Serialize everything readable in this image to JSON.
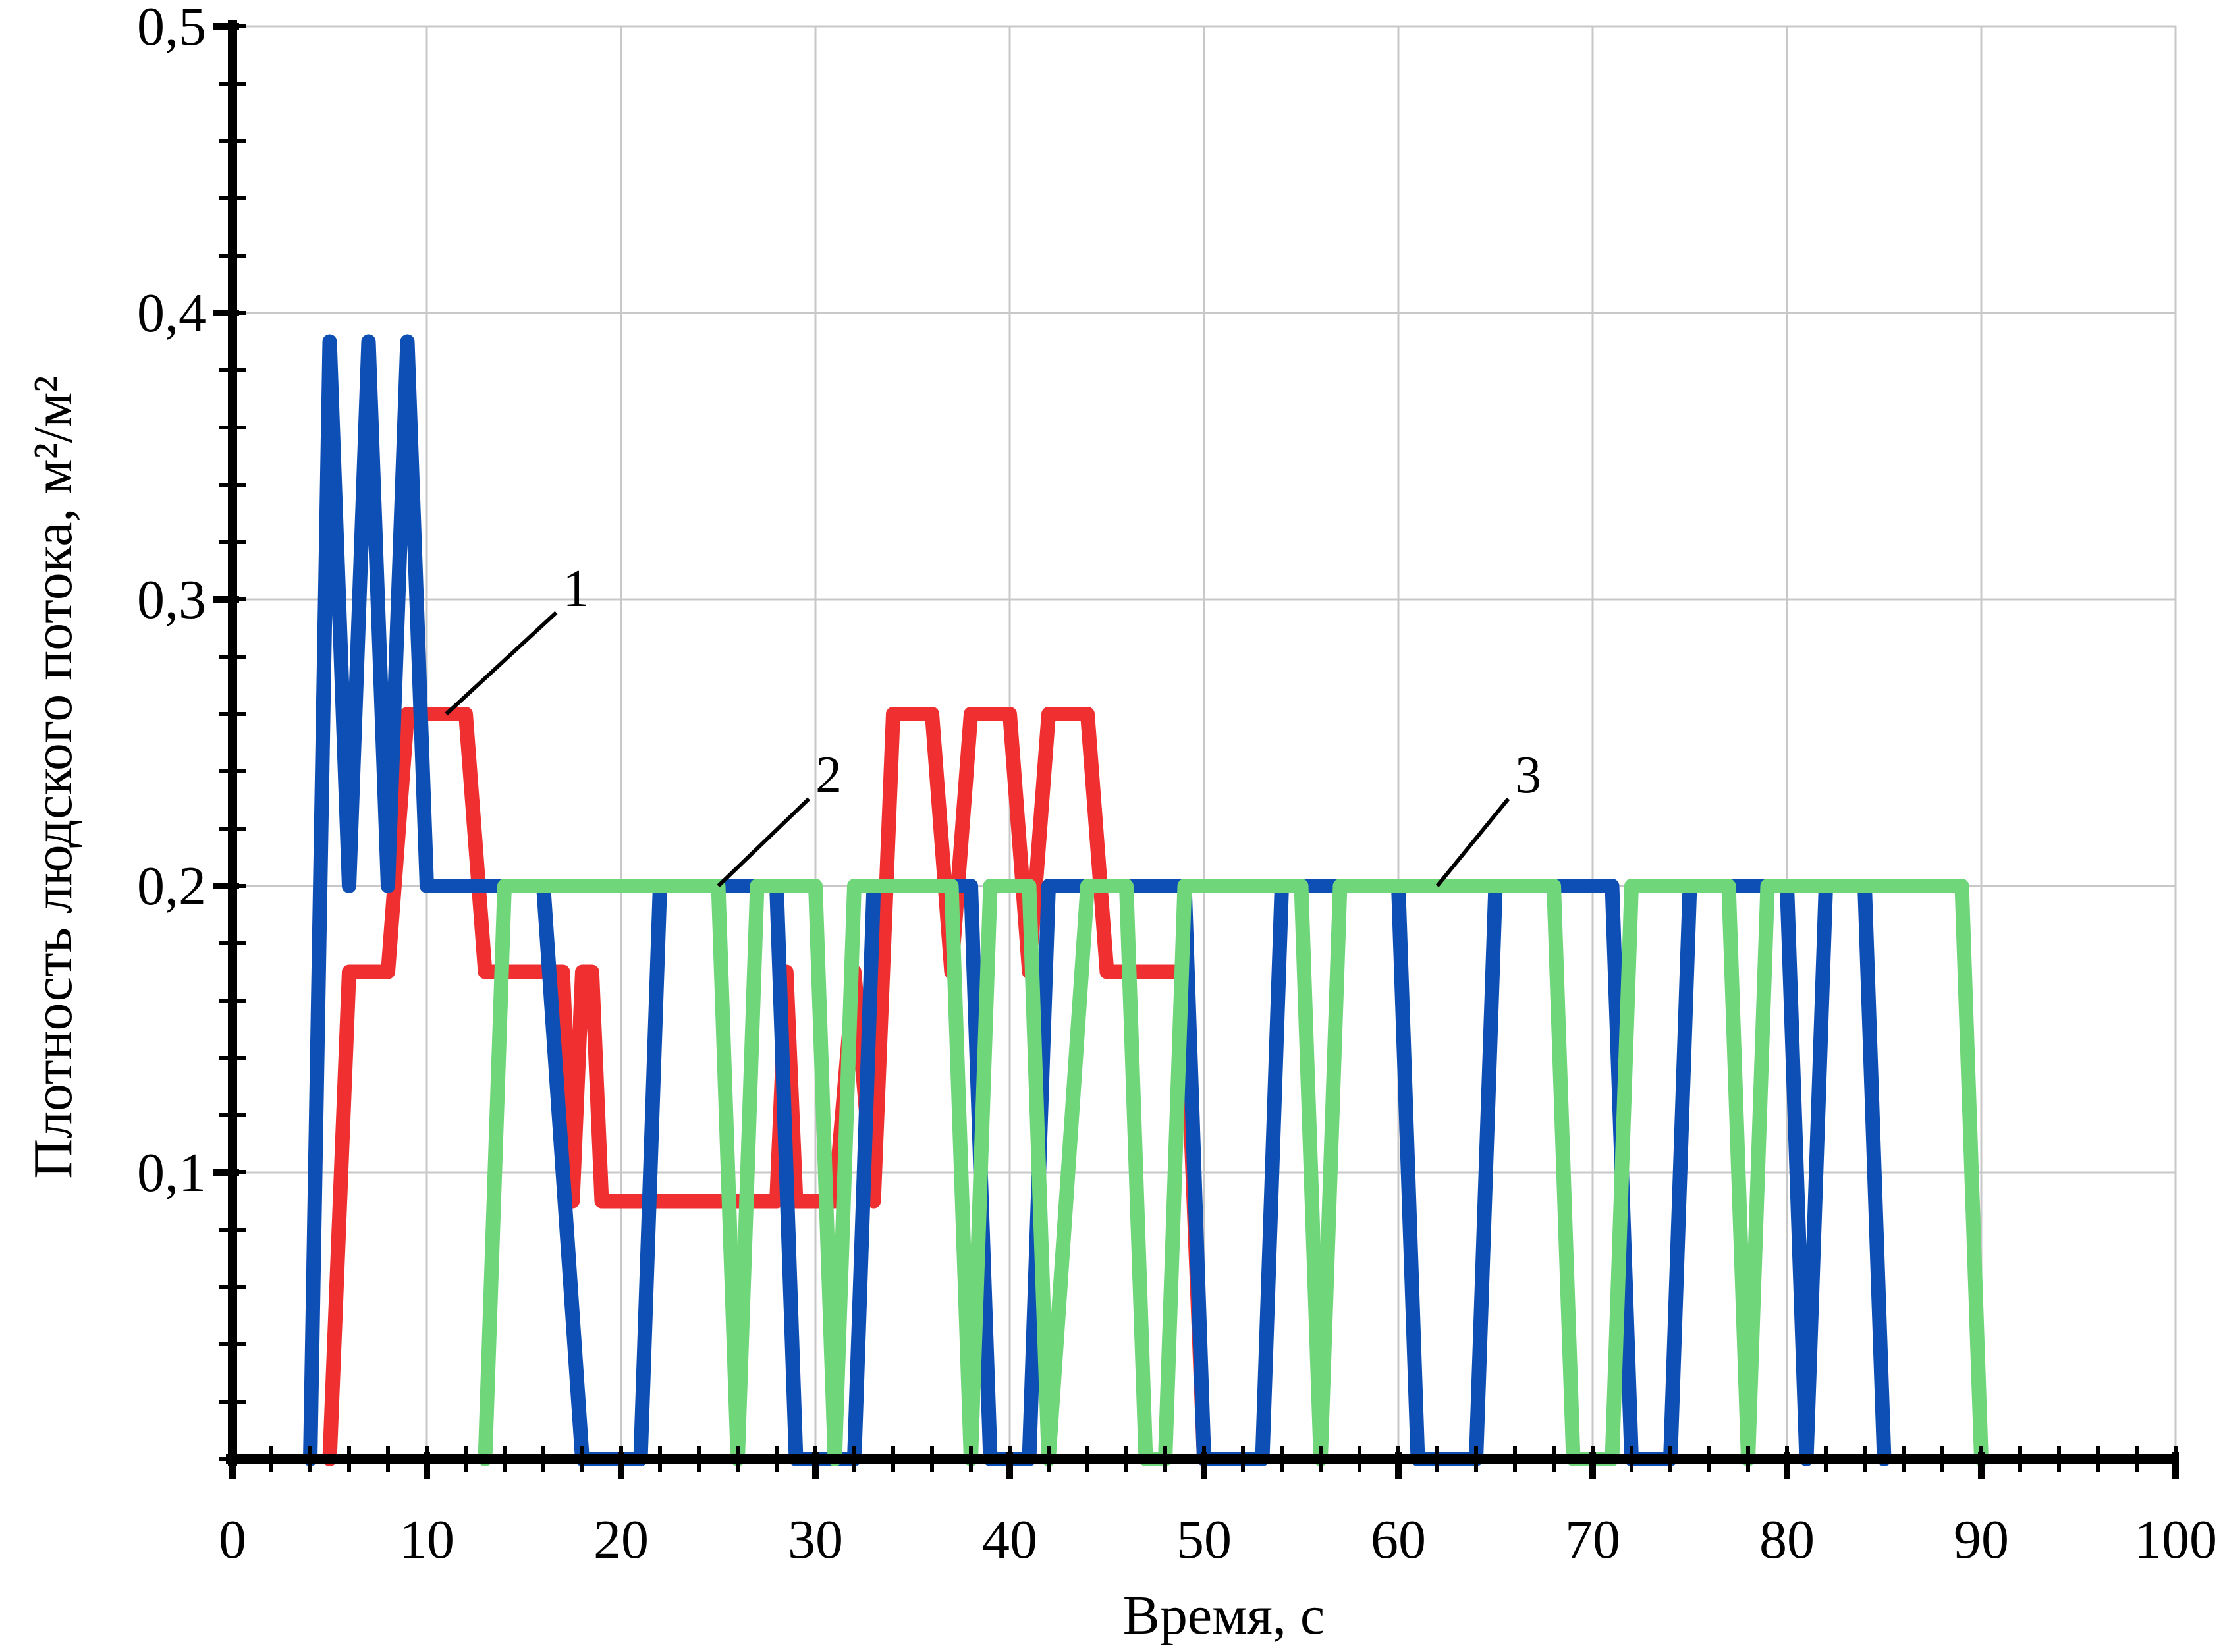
{
  "chart_data": {
    "type": "line",
    "xlabel": "Время, с",
    "ylabel": "Плотность людского потока, м²/м²",
    "xlim": [
      0,
      100
    ],
    "ylim": [
      0,
      0.5
    ],
    "x_ticks": [
      0,
      10,
      20,
      30,
      40,
      50,
      60,
      70,
      80,
      90,
      100
    ],
    "x_tick_labels": [
      "0",
      "10",
      "20",
      "30",
      "40",
      "50",
      "60",
      "70",
      "80",
      "90",
      "100"
    ],
    "y_ticks": [
      0.1,
      0.2,
      0.3,
      0.4,
      0.5
    ],
    "y_tick_labels": [
      "0,1",
      "0,2",
      "0,3",
      "0,4",
      "0,5"
    ],
    "grid": true,
    "legend": "none",
    "callouts": [
      {
        "label": "1",
        "target": [
          11,
          0.26
        ],
        "text_at": [
          17,
          0.3
        ]
      },
      {
        "label": "2",
        "target": [
          25,
          0.2
        ],
        "text_at": [
          30,
          0.235
        ]
      },
      {
        "label": "3",
        "target": [
          62,
          0.2
        ],
        "text_at": [
          66,
          0.235
        ]
      }
    ],
    "series": [
      {
        "label": "1",
        "color": "#f03030",
        "x": [
          5,
          6,
          7,
          8,
          9,
          10,
          11,
          12,
          13,
          14,
          15,
          16,
          17,
          17.5,
          18,
          18.5,
          19,
          20,
          21,
          22,
          23,
          24,
          25,
          26,
          27,
          28,
          28.5,
          29,
          29.5,
          30,
          31,
          32,
          33,
          34,
          35,
          36,
          37,
          38,
          39,
          40,
          41,
          42,
          43,
          44,
          45,
          46,
          47,
          48,
          49,
          50
        ],
        "y": [
          0,
          0.17,
          0.17,
          0.17,
          0.26,
          0.26,
          0.26,
          0.26,
          0.17,
          0.17,
          0.17,
          0.17,
          0.17,
          0.09,
          0.17,
          0.17,
          0.09,
          0.09,
          0.09,
          0.09,
          0.09,
          0.09,
          0.09,
          0.09,
          0.09,
          0.09,
          0.17,
          0.09,
          0.09,
          0.09,
          0.09,
          0.17,
          0.09,
          0.26,
          0.26,
          0.26,
          0.17,
          0.26,
          0.26,
          0.26,
          0.17,
          0.26,
          0.26,
          0.26,
          0.17,
          0.17,
          0.17,
          0.17,
          0.17,
          0
        ],
        "note": "traced waveform"
      },
      {
        "label": "2",
        "color": "#0d4fb5",
        "x": [
          4,
          5,
          6,
          7,
          8,
          9,
          10,
          11,
          12,
          14,
          16,
          18,
          19,
          20,
          21,
          22,
          25,
          28,
          29,
          30,
          31,
          32,
          33,
          36,
          38,
          39,
          40,
          41,
          42,
          43,
          45,
          48,
          49,
          50,
          51,
          52,
          53,
          54,
          57,
          60,
          61,
          62,
          63,
          64,
          65,
          68,
          71,
          72,
          73,
          74,
          75,
          76,
          78,
          80,
          81,
          82,
          83,
          84,
          85
        ],
        "y": [
          0,
          0.39,
          0.2,
          0.39,
          0.2,
          0.39,
          0.2,
          0.2,
          0.2,
          0.2,
          0.2,
          0,
          0,
          0,
          0,
          0.2,
          0.2,
          0.2,
          0,
          0,
          0,
          0,
          0.2,
          0.2,
          0.2,
          0,
          0,
          0,
          0.2,
          0.2,
          0.2,
          0.2,
          0.2,
          0,
          0,
          0,
          0,
          0.2,
          0.2,
          0.2,
          0,
          0,
          0,
          0,
          0.2,
          0.2,
          0.2,
          0,
          0,
          0,
          0.2,
          0.2,
          0.2,
          0.2,
          0,
          0.2,
          0.2,
          0.2,
          0
        ]
      },
      {
        "label": "3",
        "color": "#6fd67a",
        "x": [
          13,
          14,
          17,
          20,
          23,
          25,
          26,
          27,
          29,
          30,
          31,
          32,
          35,
          37,
          38,
          39,
          41,
          42,
          44,
          46,
          47,
          48,
          49,
          50,
          53,
          55,
          56,
          57,
          60,
          63,
          66,
          68,
          69,
          70,
          71,
          72,
          75,
          77,
          78,
          79,
          80,
          83,
          87,
          89,
          90
        ],
        "y": [
          0,
          0.2,
          0.2,
          0.2,
          0.2,
          0.2,
          0,
          0.2,
          0.2,
          0.2,
          0,
          0.2,
          0.2,
          0.2,
          0,
          0.2,
          0.2,
          0,
          0.2,
          0.2,
          0,
          0,
          0.2,
          0.2,
          0.2,
          0.2,
          0,
          0.2,
          0.2,
          0.2,
          0.2,
          0.2,
          0,
          0,
          0,
          0.2,
          0.2,
          0.2,
          0,
          0.2,
          0.2,
          0.2,
          0.2,
          0.2,
          0
        ]
      }
    ]
  }
}
